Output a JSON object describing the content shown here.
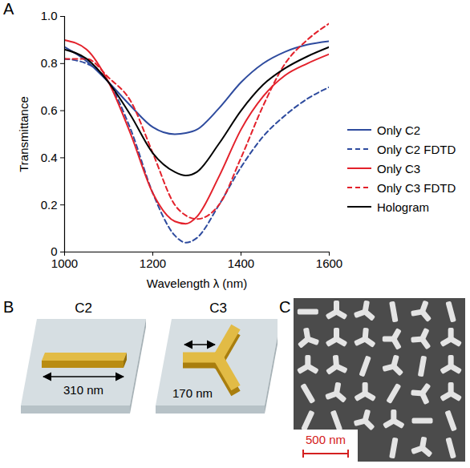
{
  "panel_labels": [
    "A",
    "B",
    "C"
  ],
  "chart_data": {
    "type": "line",
    "xlabel": "Wavelength λ (nm)",
    "ylabel": "Transmittance",
    "x": [
      1000,
      1050,
      1100,
      1150,
      1200,
      1250,
      1275,
      1300,
      1350,
      1400,
      1450,
      1500,
      1550,
      1600
    ],
    "series": [
      {
        "name": "Only C2",
        "color": "#2e4b9e",
        "line_style": "solid",
        "values": [
          0.87,
          0.81,
          0.72,
          0.62,
          0.53,
          0.5,
          0.505,
          0.52,
          0.61,
          0.72,
          0.8,
          0.85,
          0.88,
          0.895
        ]
      },
      {
        "name": "Only C2 FDTD",
        "color": "#2e4b9e",
        "line_style": "dashed",
        "values": [
          0.82,
          0.8,
          0.72,
          0.52,
          0.25,
          0.07,
          0.04,
          0.06,
          0.2,
          0.36,
          0.49,
          0.58,
          0.65,
          0.7
        ]
      },
      {
        "name": "Only C3",
        "color": "#e3212b",
        "line_style": "solid",
        "values": [
          0.9,
          0.86,
          0.72,
          0.5,
          0.25,
          0.13,
          0.12,
          0.15,
          0.32,
          0.52,
          0.66,
          0.75,
          0.8,
          0.84
        ]
      },
      {
        "name": "Only C3 FDTD",
        "color": "#e3212b",
        "line_style": "dashed",
        "values": [
          0.82,
          0.82,
          0.74,
          0.64,
          0.42,
          0.2,
          0.155,
          0.14,
          0.2,
          0.4,
          0.62,
          0.8,
          0.9,
          0.97
        ]
      },
      {
        "name": "Hologram",
        "color": "#000000",
        "line_style": "solid",
        "values": [
          0.86,
          0.82,
          0.72,
          0.58,
          0.42,
          0.34,
          0.325,
          0.34,
          0.46,
          0.6,
          0.71,
          0.78,
          0.83,
          0.87
        ]
      }
    ],
    "xlim": [
      1000,
      1600
    ],
    "xticks": [
      1000,
      1200,
      1400,
      1600
    ],
    "ylim": [
      0,
      1
    ],
    "yticks": [
      0,
      0.2,
      0.4,
      0.6,
      0.8,
      {
        "value": 1,
        "label": "1.0"
      }
    ],
    "grid": false,
    "legend": "right"
  },
  "diagram": {
    "items": [
      {
        "title": "C2",
        "dimension": "310 nm"
      },
      {
        "title": "C3",
        "dimension": "170 nm"
      }
    ]
  },
  "image": {
    "scale_bar": "500 nm"
  }
}
